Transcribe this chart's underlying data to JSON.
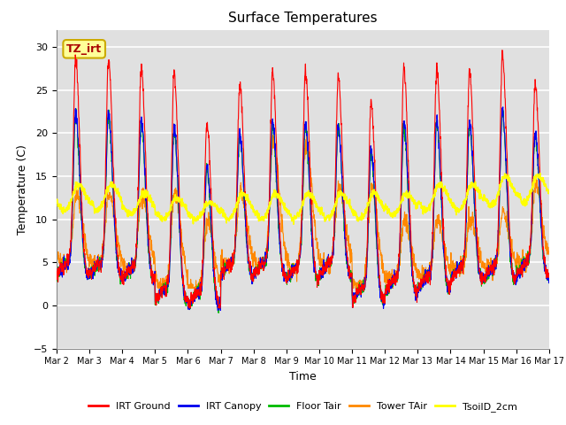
{
  "title": "Surface Temperatures",
  "xlabel": "Time",
  "ylabel": "Temperature (C)",
  "ylim": [
    -5,
    32
  ],
  "yticks": [
    -5,
    0,
    5,
    10,
    15,
    20,
    25,
    30
  ],
  "x_tick_labels": [
    "Mar 2",
    "Mar 3",
    "Mar 4",
    "Mar 5",
    "Mar 6",
    "Mar 7",
    "Mar 8",
    "Mar 9",
    "Mar 10",
    "Mar 11",
    "Mar 12",
    "Mar 13",
    "Mar 14",
    "Mar 15",
    "Mar 16",
    "Mar 17"
  ],
  "annotation_text": "TZ_irt",
  "colors": {
    "IRT Ground": "#FF0000",
    "IRT Canopy": "#0000EE",
    "Floor Tair": "#00BB00",
    "Tower TAir": "#FF8800",
    "TsoilD_2cm": "#FFFF00"
  },
  "legend_labels": [
    "IRT Ground",
    "IRT Canopy",
    "Floor Tair",
    "Tower TAir",
    "TsoilD_2cm"
  ],
  "bg_color": "#E0E0E0",
  "grid_color": "#FFFFFF",
  "n_days": 15,
  "points_per_day": 144
}
